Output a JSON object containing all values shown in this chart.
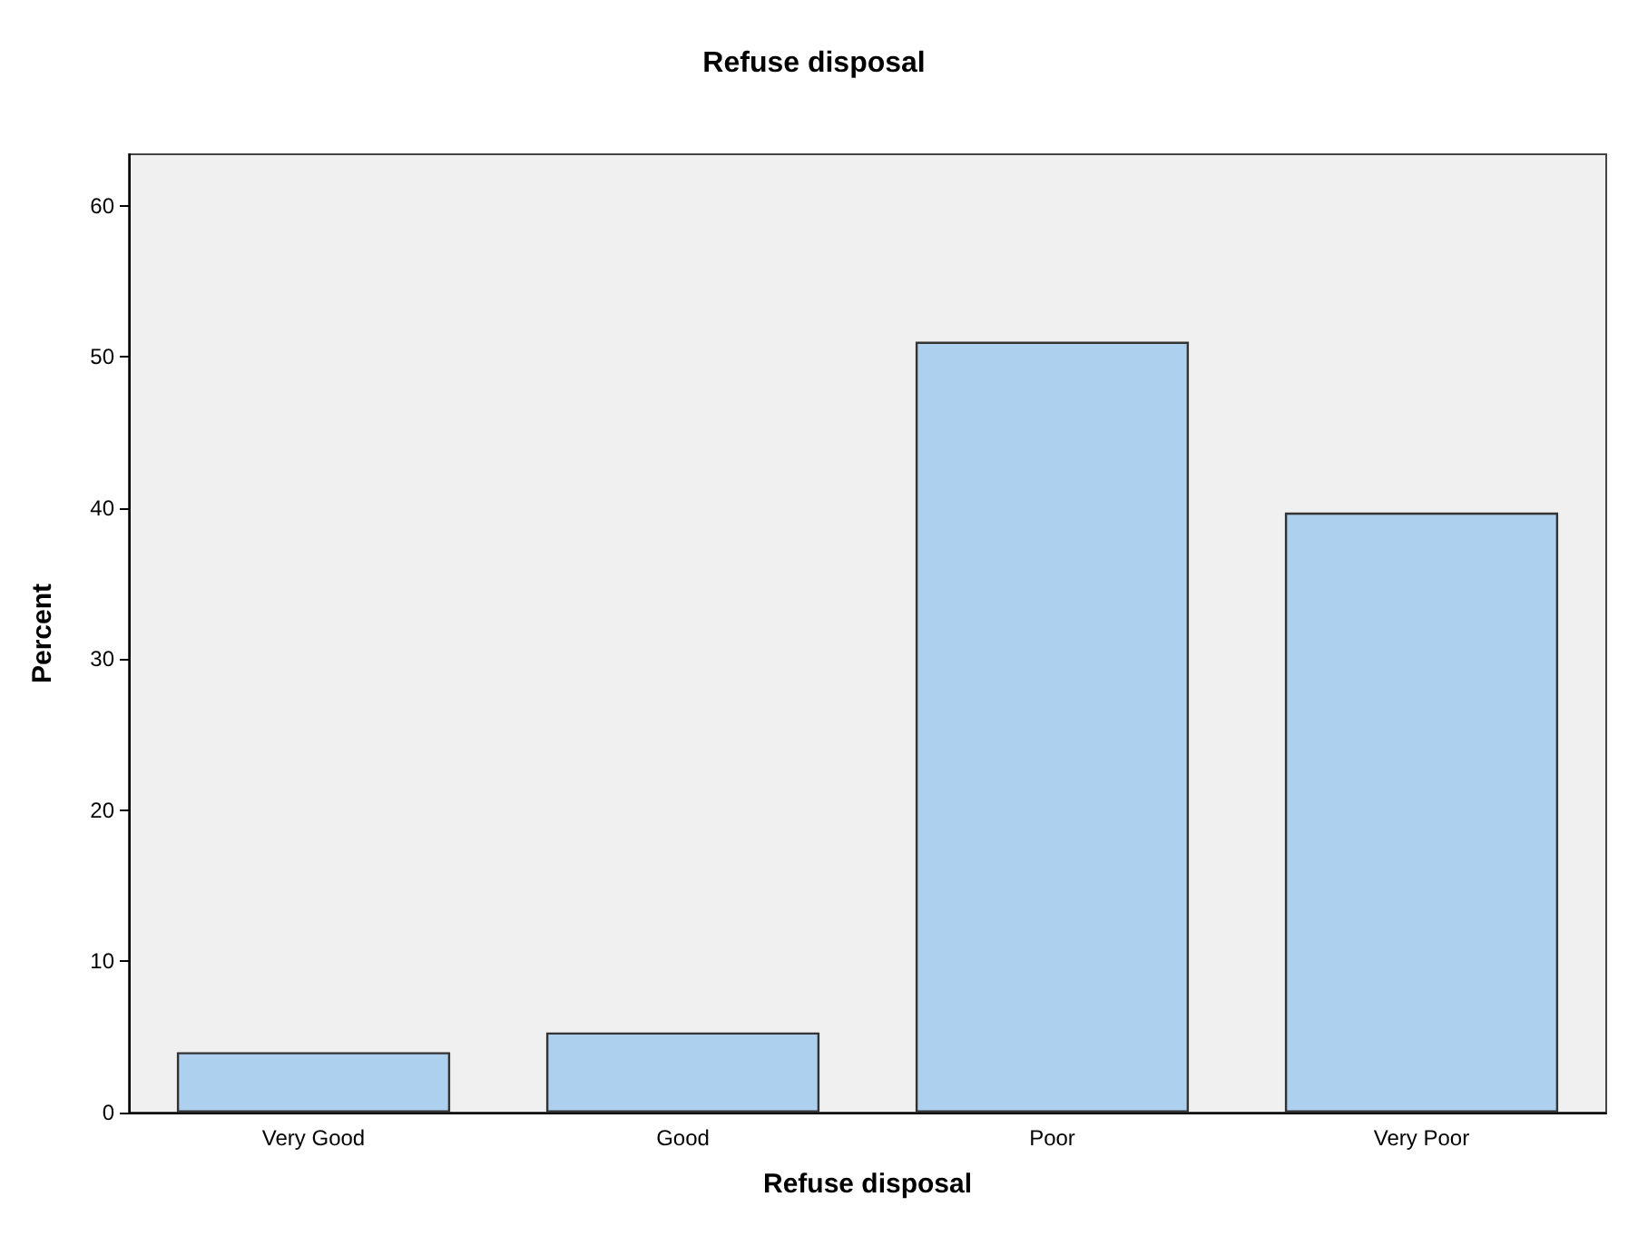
{
  "chart_data": {
    "type": "bar",
    "title": "Refuse disposal",
    "xlabel": "Refuse disposal",
    "ylabel": "Percent",
    "categories": [
      "Very Good",
      "Good",
      "Poor",
      "Very Poor"
    ],
    "values": [
      4.0,
      5.3,
      51.0,
      39.7
    ],
    "color": "#acd0ee",
    "ylim": [
      0,
      63.4
    ],
    "yticks": [
      0,
      10,
      20,
      30,
      40,
      50,
      60
    ]
  }
}
